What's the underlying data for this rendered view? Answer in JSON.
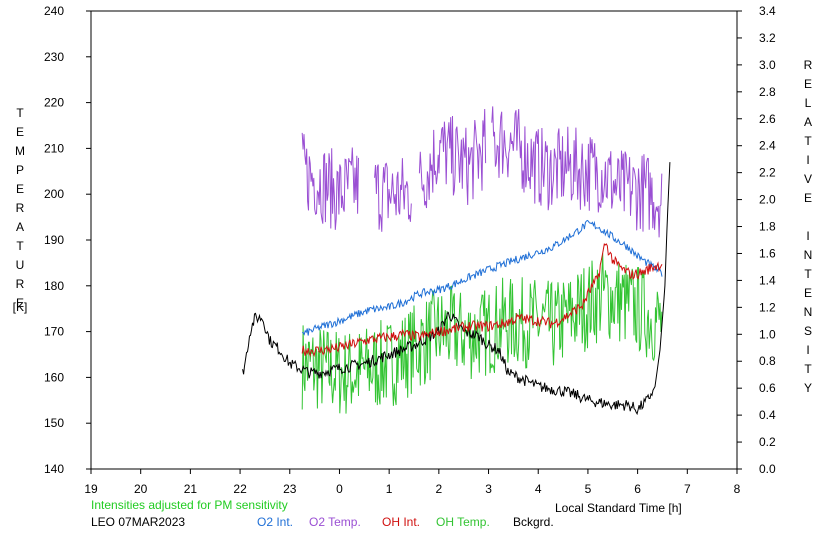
{
  "labels": {
    "left_axis_title": [
      "T",
      "E",
      "M",
      "P",
      "E",
      "R",
      "A",
      "T",
      "U",
      "R",
      "E"
    ],
    "left_axis_unit": "[K]",
    "right_axis_title": [
      "R",
      "E",
      "L",
      "A",
      "T",
      "I",
      "V",
      "E",
      "",
      "I",
      "N",
      "T",
      "E",
      "N",
      "S",
      "I",
      "T",
      "Y"
    ],
    "x_axis_title": "Local Standard Time [h]",
    "note": "Intensities adjusted for PM sensitivity",
    "station_date": "LEO 07MAR2023"
  },
  "colors": {
    "o2_int": "#1f6fd6",
    "o2_temp": "#9a4fd3",
    "oh_int": "#d0100f",
    "oh_temp": "#33c433",
    "bckgrd": "#000000",
    "note": "#22cc22"
  },
  "chart_data": {
    "type": "line",
    "xlim": [
      19,
      32
    ],
    "x_ticks": [
      19,
      20,
      21,
      22,
      23,
      24,
      25,
      26,
      27,
      28,
      29,
      30,
      31,
      32
    ],
    "x_tick_labels": [
      "19",
      "20",
      "21",
      "22",
      "23",
      "0",
      "1",
      "2",
      "3",
      "4",
      "5",
      "6",
      "7",
      "8"
    ],
    "ylim_left": [
      140,
      240
    ],
    "y_ticks_left": [
      140,
      150,
      160,
      170,
      180,
      190,
      200,
      210,
      220,
      230,
      240
    ],
    "ylim_right": [
      0.0,
      3.4
    ],
    "y_ticks_right": [
      "0.0",
      "0.2",
      "0.4",
      "0.6",
      "0.8",
      "1.0",
      "1.2",
      "1.4",
      "1.6",
      "1.8",
      "2.0",
      "2.2",
      "2.4",
      "2.6",
      "2.8",
      "3.0",
      "3.2",
      "3.4"
    ],
    "series": [
      {
        "name": "O2 Int.",
        "axis": "right",
        "style": "smooth",
        "x": [
          23.25,
          23.6,
          24,
          24.3,
          24.6,
          25,
          25.3,
          25.6,
          26,
          26.3,
          26.6,
          27,
          27.3,
          27.6,
          28,
          28.3,
          28.6,
          29,
          29.2,
          29.5,
          29.8,
          30,
          30.3,
          30.5
        ],
        "y": [
          1.0,
          1.05,
          1.1,
          1.14,
          1.18,
          1.2,
          1.24,
          1.3,
          1.33,
          1.37,
          1.42,
          1.48,
          1.52,
          1.56,
          1.61,
          1.65,
          1.72,
          1.82,
          1.8,
          1.72,
          1.65,
          1.58,
          1.5,
          1.45
        ]
      },
      {
        "name": "O2 Temp.",
        "axis": "left",
        "style": "noisy",
        "x": [
          23.25,
          23.6,
          24,
          24.3,
          24.6,
          25,
          25.3,
          25.6,
          26,
          26.3,
          26.6,
          27,
          27.3,
          27.6,
          28,
          28.3,
          28.6,
          29,
          29.3,
          29.6,
          30,
          30.3,
          30.5
        ],
        "y": [
          205,
          203,
          200,
          202,
          201,
          200,
          200,
          202,
          210,
          208,
          206,
          211,
          212,
          210,
          206,
          205,
          206,
          205,
          205,
          201,
          201,
          200,
          199
        ]
      },
      {
        "name": "OH Int.",
        "axis": "right",
        "style": "smooth",
        "x": [
          23.25,
          23.6,
          24,
          24.3,
          24.6,
          25,
          25.3,
          25.6,
          26,
          26.3,
          26.6,
          27,
          27.3,
          27.6,
          28,
          28.3,
          28.6,
          28.9,
          29,
          29.2,
          29.35,
          29.5,
          29.7,
          29.9,
          30.1,
          30.3,
          30.5
        ],
        "y": [
          0.88,
          0.88,
          0.9,
          0.93,
          0.96,
          0.98,
          1.0,
          0.98,
          1.02,
          1.04,
          1.06,
          1.06,
          1.08,
          1.12,
          1.1,
          1.08,
          1.14,
          1.22,
          1.3,
          1.42,
          1.68,
          1.55,
          1.48,
          1.44,
          1.46,
          1.5,
          1.52
        ]
      },
      {
        "name": "OH Temp.",
        "axis": "left",
        "style": "noisy",
        "x": [
          23.25,
          23.6,
          24,
          24.3,
          24.6,
          25,
          25.3,
          25.6,
          26,
          26.3,
          26.6,
          27,
          27.3,
          27.6,
          28,
          28.3,
          28.6,
          29,
          29.3,
          29.6,
          30,
          30.3,
          30.5
        ],
        "y": [
          163,
          162,
          161,
          161,
          162,
          163,
          165,
          167,
          170,
          170,
          169,
          170,
          172,
          172,
          172,
          171,
          173,
          176,
          178,
          177,
          175,
          173,
          172
        ]
      },
      {
        "name": "Bckgrd.",
        "axis": "left",
        "style": "line",
        "x": [
          22.05,
          22.1,
          22.2,
          22.3,
          22.45,
          22.6,
          22.8,
          23.0,
          23.2,
          23.4,
          23.6,
          24.0,
          24.5,
          25.0,
          25.5,
          26.0,
          26.2,
          26.5,
          26.8,
          27.0,
          27.2,
          27.4,
          27.6,
          28.0,
          28.5,
          28.8,
          29.0,
          29.5,
          29.8,
          30.0,
          30.2,
          30.35,
          30.45,
          30.55,
          30.6,
          30.65
        ],
        "y": [
          161,
          163,
          170,
          173,
          173,
          168,
          166,
          163,
          162,
          161,
          161,
          162,
          163,
          165,
          167,
          170,
          174,
          170,
          169,
          167,
          166,
          161,
          160,
          158,
          157,
          156,
          155,
          154,
          154,
          153,
          155,
          158,
          166,
          180,
          195,
          207
        ]
      }
    ],
    "legend": [
      {
        "label": "O2 Int.",
        "color": "#1f6fd6"
      },
      {
        "label": "O2 Temp.",
        "color": "#9a4fd3"
      },
      {
        "label": "OH Int.",
        "color": "#d0100f"
      },
      {
        "label": "OH Temp.",
        "color": "#33c433"
      },
      {
        "label": "Bckgrd.",
        "color": "#000000"
      }
    ],
    "legend_placement": "bottom-center",
    "grid": false
  }
}
